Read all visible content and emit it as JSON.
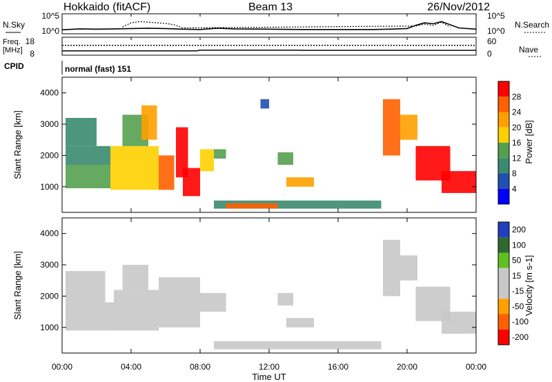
{
  "header": {
    "station": "Hokkaido (fitACF)",
    "beam": "Beam 13",
    "date": "26/Nov/2012"
  },
  "noise_panel": {
    "left_label": "N.Sky",
    "right_label": "N.Search",
    "left_ticks": [
      "10^5",
      "10^0"
    ],
    "right_ticks": [
      "10^5",
      "10^0"
    ]
  },
  "freq_panel": {
    "left_label_1": "Freq.",
    "left_label_2": "[MHz]",
    "right_label": "Nave",
    "left_ticks": [
      "18",
      "8"
    ],
    "right_ticks": [
      "60",
      "0"
    ]
  },
  "cpid_panel": {
    "label": "CPID",
    "value": "normal (fast) 151"
  },
  "x_axis": {
    "label": "Time UT",
    "ticks": [
      "00:00",
      "04:00",
      "08:00",
      "12:00",
      "16:00",
      "20:00",
      "00:00"
    ]
  },
  "colors": {
    "power_scale": [
      "#0000ff",
      "#2050b0",
      "#3b8a70",
      "#55a050",
      "#ffd000",
      "#ffa000",
      "#ff6000",
      "#ff0000"
    ],
    "velocity_scale": [
      "#2040c0",
      "#306830",
      "#60c020",
      "#c8c8c8",
      "#c8c8c8",
      "#ffa000",
      "#ff6000",
      "#ff0000"
    ]
  },
  "chart_data": [
    {
      "type": "line",
      "panel": "noise",
      "x_unit": "hours UT",
      "xlim": [
        0,
        24
      ],
      "ylim": [
        0,
        5
      ],
      "y_scale": "log10",
      "series": [
        {
          "name": "N.Sky",
          "style": "solid",
          "x": [
            0,
            1,
            2,
            3,
            4,
            5,
            6,
            7,
            8,
            9,
            10,
            12,
            14,
            16,
            18,
            19,
            20,
            20.5,
            21,
            21.5,
            22,
            23,
            24
          ],
          "y": [
            0.6,
            0.9,
            0.8,
            0.9,
            1.0,
            1.1,
            1.0,
            0.8,
            0.7,
            1.1,
            0.9,
            0.8,
            0.7,
            0.7,
            0.7,
            0.8,
            1.0,
            2.0,
            2.8,
            2.5,
            3.2,
            1.2,
            0.8
          ]
        },
        {
          "name": "N.Search",
          "style": "dotted",
          "x": [
            3.5,
            4,
            4.5,
            5,
            5.5,
            6,
            6.5,
            7,
            20.5,
            21,
            21.5,
            22,
            22.5
          ],
          "y": [
            1.5,
            2.8,
            3.2,
            3.0,
            2.8,
            2.6,
            2.2,
            1.2,
            1.8,
            2.4,
            2.0,
            3.0,
            1.5
          ]
        }
      ]
    },
    {
      "type": "line",
      "panel": "freq_nave",
      "x_unit": "hours UT",
      "xlim": [
        0,
        24
      ],
      "series": [
        {
          "name": "Freq.",
          "style": "solid",
          "ylim": [
            8,
            18
          ],
          "x": [
            0,
            7.8,
            8,
            13.6,
            14,
            24
          ],
          "y": [
            10.2,
            10.2,
            10.6,
            10.6,
            10.5,
            10.5
          ]
        },
        {
          "name": "Nave",
          "style": "dotted",
          "ylim": [
            0,
            60
          ],
          "x": [
            0,
            24
          ],
          "y": [
            33,
            33
          ]
        }
      ]
    },
    {
      "type": "heatmap",
      "panel": "power",
      "xlabel": "Time UT",
      "ylabel": "Slant Range [km]",
      "xlim": [
        0,
        24
      ],
      "ylim": [
        180,
        4500
      ],
      "y_ticks": [
        1000,
        2000,
        3000,
        4000
      ],
      "colorbar": {
        "label": "Power [dB]",
        "ticks": [
          4,
          8,
          12,
          16,
          20,
          24,
          28
        ],
        "range": [
          0,
          32
        ]
      },
      "regions": [
        {
          "t": [
            0.2,
            2.8
          ],
          "r": [
            950,
            1700
          ],
          "value": 12
        },
        {
          "t": [
            0.2,
            2.8
          ],
          "r": [
            1700,
            2300
          ],
          "value": 10
        },
        {
          "t": [
            0.2,
            2.0
          ],
          "r": [
            2300,
            3200
          ],
          "value": 9
        },
        {
          "t": [
            2.8,
            5.6
          ],
          "r": [
            900,
            2300
          ],
          "value": 16
        },
        {
          "t": [
            3.5,
            5.0
          ],
          "r": [
            2300,
            3300
          ],
          "value": 14
        },
        {
          "t": [
            4.6,
            5.5
          ],
          "r": [
            2500,
            3600
          ],
          "value": 22
        },
        {
          "t": [
            5.6,
            6.5
          ],
          "r": [
            900,
            2000
          ],
          "value": 27
        },
        {
          "t": [
            6.6,
            7.3
          ],
          "r": [
            1300,
            2900
          ],
          "value": 29
        },
        {
          "t": [
            7.0,
            8.0
          ],
          "r": [
            700,
            1600
          ],
          "value": 30
        },
        {
          "t": [
            8.0,
            8.8
          ],
          "r": [
            1500,
            2200
          ],
          "value": 18
        },
        {
          "t": [
            8.8,
            9.5
          ],
          "r": [
            1900,
            2200
          ],
          "value": 13
        },
        {
          "t": [
            8.8,
            18.5
          ],
          "r": [
            300,
            560
          ],
          "value": 9
        },
        {
          "t": [
            9.5,
            12.5
          ],
          "r": [
            300,
            470
          ],
          "value": 26
        },
        {
          "t": [
            11.5,
            12.0
          ],
          "r": [
            3500,
            3800
          ],
          "value": 6
        },
        {
          "t": [
            12.5,
            13.4
          ],
          "r": [
            1700,
            2100
          ],
          "value": 14
        },
        {
          "t": [
            13.0,
            14.6
          ],
          "r": [
            1000,
            1300
          ],
          "value": 22
        },
        {
          "t": [
            18.6,
            19.6
          ],
          "r": [
            2000,
            3800
          ],
          "value": 24
        },
        {
          "t": [
            19.6,
            20.6
          ],
          "r": [
            2500,
            3300
          ],
          "value": 20
        },
        {
          "t": [
            20.5,
            22.5
          ],
          "r": [
            1200,
            2300
          ],
          "value": 28
        },
        {
          "t": [
            22.0,
            24.0
          ],
          "r": [
            800,
            1500
          ],
          "value": 29
        }
      ]
    },
    {
      "type": "heatmap",
      "panel": "velocity",
      "xlabel": "Time UT",
      "ylabel": "Slant Range [km]",
      "xlim": [
        0,
        24
      ],
      "ylim": [
        180,
        4500
      ],
      "y_ticks": [
        1000,
        2000,
        3000,
        4000
      ],
      "colorbar": {
        "label": "Velocity [m s-1]",
        "ticks": [
          200,
          100,
          50,
          15,
          -15,
          -50,
          -100,
          -200
        ],
        "range": [
          -250,
          250
        ]
      },
      "regions": [
        {
          "t": [
            0.2,
            3.0
          ],
          "r": [
            900,
            1800
          ],
          "value": 0
        },
        {
          "t": [
            0.2,
            2.5
          ],
          "r": [
            1800,
            2800
          ],
          "value": -20
        },
        {
          "t": [
            3.0,
            5.6
          ],
          "r": [
            900,
            2200
          ],
          "value": 0
        },
        {
          "t": [
            3.5,
            5.0
          ],
          "r": [
            2200,
            3000
          ],
          "value": -40
        },
        {
          "t": [
            5.6,
            8.0
          ],
          "r": [
            1000,
            2600
          ],
          "value": 0
        },
        {
          "t": [
            8.0,
            9.5
          ],
          "r": [
            1500,
            2100
          ],
          "value": -10
        },
        {
          "t": [
            8.8,
            18.5
          ],
          "r": [
            300,
            560
          ],
          "value": -35
        },
        {
          "t": [
            12.5,
            13.4
          ],
          "r": [
            1700,
            2100
          ],
          "value": 40
        },
        {
          "t": [
            13.0,
            14.6
          ],
          "r": [
            1000,
            1300
          ],
          "value": 30
        },
        {
          "t": [
            18.6,
            19.6
          ],
          "r": [
            2000,
            3800
          ],
          "value": 0
        },
        {
          "t": [
            19.6,
            20.6
          ],
          "r": [
            2500,
            3300
          ],
          "value": 30
        },
        {
          "t": [
            20.5,
            22.5
          ],
          "r": [
            1200,
            2300
          ],
          "value": 0
        },
        {
          "t": [
            22.0,
            24.0
          ],
          "r": [
            800,
            1500
          ],
          "value": 0
        }
      ]
    }
  ]
}
